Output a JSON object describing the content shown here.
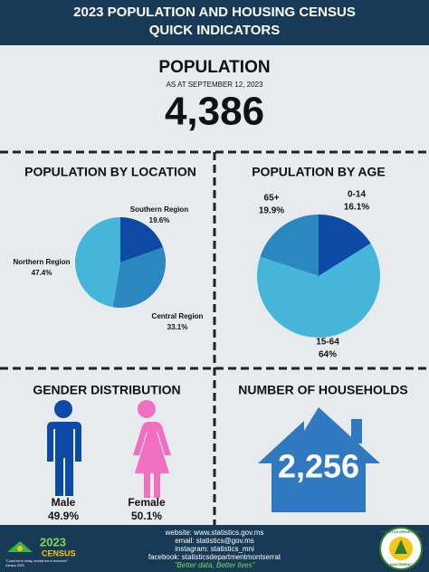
{
  "header": {
    "title_line1": "2023 POPULATION AND HOUSING CENSUS",
    "title_line2": "QUICK INDICATORS"
  },
  "population": {
    "heading": "POPULATION",
    "date": "AS AT SEPTEMBER 12, 2023",
    "total": "4,386"
  },
  "chart_data": [
    {
      "type": "pie",
      "title": "POPULATION BY LOCATION",
      "categories": [
        "Southern Region",
        "Central Region",
        "Northern Region"
      ],
      "values": [
        19.6,
        33.1,
        47.4
      ],
      "value_labels": [
        "19.6%",
        "33.1%",
        "47.4%"
      ],
      "colors": [
        "#0d4aa6",
        "#2a87bf",
        "#45b6d9"
      ]
    },
    {
      "type": "pie",
      "title": "POPULATION BY AGE",
      "categories": [
        "0-14",
        "15-64",
        "65+"
      ],
      "values": [
        16.1,
        64,
        19.9
      ],
      "value_labels": [
        "16.1%",
        "64%",
        "19.9%"
      ],
      "colors": [
        "#0d4aa6",
        "#45b6d9",
        "#2a87bf"
      ]
    }
  ],
  "gender": {
    "title": "GENDER DISTRIBUTION",
    "male_label": "Male",
    "male_value": "49.9%",
    "female_label": "Female",
    "female_value": "50.1%"
  },
  "households": {
    "title": "NUMBER OF HOUSEHOLDS",
    "total": "2,256"
  },
  "footer": {
    "website": "website: www.statistics.gov.ms",
    "email": "email: statistics@gov.ms",
    "instagram": "instagram: statistics_mni",
    "facebook": "facebook: statisticsdepartmentmontserrat",
    "slogan": "\"Better data, Better lives\"",
    "logo_year": "2023",
    "logo_word": "CENSUS",
    "logo_tagline": "\"Count me in today, include me in tomorrow\"",
    "logo_sub": "Census 2023",
    "seal_top": "STATISTICS DEPARTMENT",
    "seal_bottom": "MONTSERRAT"
  }
}
